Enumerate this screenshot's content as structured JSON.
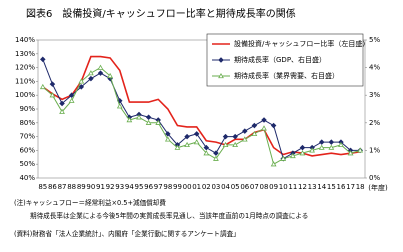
{
  "chart_data": {
    "type": "line",
    "title": "図表6　設備投資/キャッシュフロー比率と期待成長率の関係",
    "categories": [
      "85",
      "86",
      "87",
      "88",
      "89",
      "90",
      "91",
      "92",
      "93",
      "94",
      "95",
      "96",
      "97",
      "98",
      "99",
      "00",
      "01",
      "02",
      "03",
      "04",
      "05",
      "06",
      "07",
      "08",
      "09",
      "10",
      "11",
      "12",
      "13",
      "14",
      "15",
      "16",
      "17",
      "18"
    ],
    "x_unit": "(年度)",
    "series": [
      {
        "name": "設備投資/キャッシュフロー比率（左目盛）",
        "color": "#e3231b",
        "marker": "none",
        "values": [
          106,
          101,
          97,
          100,
          110,
          128,
          128,
          127,
          118,
          95,
          95,
          95,
          97,
          90,
          78,
          77,
          77,
          67,
          66,
          64,
          68,
          68,
          73,
          75,
          62,
          57,
          59,
          58,
          56,
          57,
          58,
          57,
          58,
          59
        ]
      },
      {
        "name": "期待成長率（GDP、右目盛）",
        "color": "#1f2a6b",
        "marker": "diamond",
        "axis": "y2",
        "values": [
          4.3,
          3.4,
          2.7,
          3.0,
          3.3,
          3.6,
          3.8,
          3.6,
          2.8,
          2.2,
          2.3,
          2.2,
          2.1,
          1.6,
          1.2,
          1.5,
          1.6,
          1.1,
          0.9,
          1.5,
          1.5,
          1.7,
          1.9,
          2.1,
          1.9,
          0.7,
          0.9,
          1.1,
          1.1,
          1.3,
          1.3,
          1.3,
          1.0,
          1.0
        ]
      },
      {
        "name": "期待成長率（業界需要、右目盛）",
        "color": "#6aae4f",
        "marker": "triangle",
        "axis": "y2",
        "values": [
          3.3,
          3.0,
          2.4,
          2.8,
          3.5,
          3.8,
          4.0,
          3.7,
          2.6,
          2.1,
          2.2,
          2.0,
          2.0,
          1.4,
          1.1,
          1.2,
          1.3,
          0.9,
          0.7,
          1.2,
          1.2,
          1.4,
          1.6,
          1.8,
          0.5,
          0.7,
          0.8,
          0.9,
          1.0,
          1.1,
          1.1,
          1.2,
          0.9,
          1.0
        ]
      }
    ],
    "ylim": [
      40,
      140
    ],
    "yticks": [
      {
        "value": 40,
        "label": "40%"
      },
      {
        "value": 50,
        "label": "50%"
      },
      {
        "value": 60,
        "label": "60%"
      },
      {
        "value": 70,
        "label": "70%"
      },
      {
        "value": 80,
        "label": "80%"
      },
      {
        "value": 90,
        "label": "90%"
      },
      {
        "value": 100,
        "label": "100%"
      },
      {
        "value": 110,
        "label": "110%"
      },
      {
        "value": 120,
        "label": "120%"
      },
      {
        "value": 130,
        "label": "130%"
      },
      {
        "value": 140,
        "label": "140%"
      }
    ],
    "y2lim": [
      0,
      5
    ],
    "y2ticks": [
      {
        "value": 0,
        "label": "0%"
      },
      {
        "value": 1,
        "label": "1%"
      },
      {
        "value": 2,
        "label": "2%"
      },
      {
        "value": 3,
        "label": "3%"
      },
      {
        "value": 4,
        "label": "4%"
      },
      {
        "value": 5,
        "label": "5%"
      }
    ],
    "legend": "top-right",
    "notes": [
      "(注)キャッシュフロー＝経常利益×0.5+減価償却費",
      "期待成長率は企業による今後5年間の実質成長率見通し、当該年度直前の1月時点の調査による",
      "(資料)財務省「法人企業統計」、内閣府「企業行動に関するアンケート調査」"
    ]
  }
}
